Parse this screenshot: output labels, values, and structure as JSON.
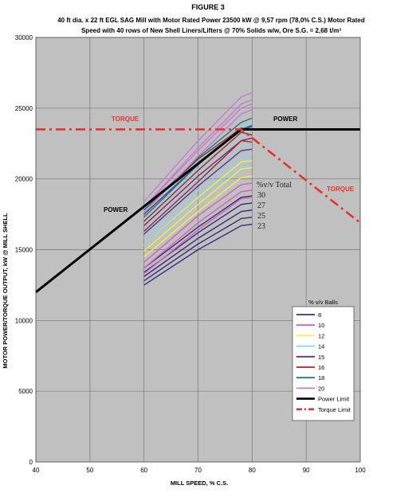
{
  "figure_label": "FIGURE 3",
  "title_line1": "40 ft dia. x 22 ft EGL SAG Mill with Motor Rated Power 23500 kW @ 9,57 rpm (78,0% C.S.) Motor Rated",
  "title_line2": "Speed with 40 rows of New Shell Liners/Lifters @ 70% Solids w/w, Ore S.G. = 2,68 t/m³",
  "colors": {
    "plot_bg": "#c0c0c0",
    "grid": "#777777",
    "power_limit": "#000000",
    "torque_limit": "#e8322c"
  },
  "chart_data": {
    "type": "line",
    "xlabel": "MILL SPEED, % C.S.",
    "ylabel": "MOTOR POWER/TORQUE OUTPUT, kW @ MILL SHELL",
    "xlim": [
      40,
      100
    ],
    "ylim": [
      0,
      30000
    ],
    "x_ticks": [
      "40",
      "50",
      "60",
      "70",
      "80",
      "90",
      "100"
    ],
    "y_ticks": [
      "0",
      "5000",
      "10000",
      "15000",
      "20000",
      "25000",
      "30000"
    ],
    "grid": true,
    "annotations": {
      "torque_left": "TORQUE",
      "torque_right": "TORQUE",
      "power_left": "POWER",
      "power_right": "POWER",
      "total_header": "%v/v Total",
      "total_30": "30",
      "total_27": "27",
      "total_25": "25",
      "total_23": "23"
    },
    "reference_lines": [
      {
        "name": "Power Limit",
        "color": "#000000",
        "style": "solid",
        "points": [
          [
            40,
            12000
          ],
          [
            78,
            23500
          ],
          [
            100,
            23500
          ]
        ]
      },
      {
        "name": "Torque Limit",
        "color": "#e8322c",
        "style": "dashdot",
        "points": [
          [
            40,
            23500
          ],
          [
            78,
            23500
          ],
          [
            100,
            16900
          ]
        ]
      }
    ],
    "legend": {
      "title": "% v/v Balls",
      "position": "bottom-right",
      "entries": [
        {
          "label": "8",
          "color": "#3b2c7a"
        },
        {
          "label": "10",
          "color": "#d060c0"
        },
        {
          "label": "12",
          "color": "#f0f048"
        },
        {
          "label": "14",
          "color": "#84d4ec"
        },
        {
          "label": "15",
          "color": "#6c2c7c"
        },
        {
          "label": "16",
          "color": "#a02828"
        },
        {
          "label": "18",
          "color": "#1c7c80"
        },
        {
          "label": "20",
          "color": "#c87ad0"
        },
        {
          "label": "Power Limit",
          "color": "#000000"
        },
        {
          "label": "Torque Limit",
          "color": "#e8322c"
        }
      ]
    },
    "series": [
      {
        "name": "8",
        "color": "#3b2c7a",
        "x": [
          60,
          70,
          78,
          80
        ],
        "y": [
          [
            12500,
            15000,
            16700,
            16800
          ],
          [
            12800,
            15400,
            17200,
            17300
          ],
          [
            13100,
            15800,
            17700,
            17800
          ],
          [
            13400,
            16200,
            18200,
            18300
          ],
          [
            13700,
            16600,
            18700,
            18800
          ]
        ]
      },
      {
        "name": "10",
        "color": "#d060c0",
        "x": [
          60,
          70,
          78,
          80
        ],
        "y": [
          [
            13300,
            16400,
            18600,
            18700
          ],
          [
            13700,
            16900,
            19100,
            19200
          ],
          [
            14100,
            17400,
            19600,
            19700
          ]
        ]
      },
      {
        "name": "12",
        "color": "#f0f048",
        "x": [
          60,
          70,
          78,
          80
        ],
        "y": [
          [
            14500,
            17700,
            20100,
            20200
          ],
          [
            14900,
            18200,
            20700,
            20800
          ],
          [
            15300,
            18700,
            21200,
            21300
          ]
        ]
      },
      {
        "name": "14",
        "color": "#84d4ec",
        "x": [
          60,
          70,
          78,
          80
        ],
        "y": [
          [
            15300,
            18600,
            20900,
            21100
          ],
          [
            15800,
            19200,
            21500,
            21700
          ],
          [
            16200,
            19700,
            22100,
            22300
          ],
          [
            16700,
            20200,
            22700,
            22900
          ],
          [
            17200,
            20700,
            23200,
            23400
          ],
          [
            17700,
            21200,
            23700,
            23900
          ]
        ]
      },
      {
        "name": "15",
        "color": "#6c2c7c",
        "x": [
          60,
          70,
          78,
          80
        ],
        "y": [
          [
            16100,
            19500,
            22000,
            22100
          ],
          [
            16700,
            20200,
            22700,
            22900
          ],
          [
            17500,
            21000,
            23500,
            23700
          ]
        ]
      },
      {
        "name": "16",
        "color": "#a02828",
        "x": [
          60,
          70,
          78,
          80
        ],
        "y": [
          [
            16300,
            19800,
            22700,
            22600
          ],
          [
            17000,
            20600,
            23300,
            23100
          ],
          [
            17800,
            21400,
            23600,
            23500
          ]
        ]
      },
      {
        "name": "18",
        "color": "#1c7c80",
        "x": [
          60,
          70,
          78,
          80
        ],
        "y": [
          [
            17300,
            21000,
            23500,
            23800
          ],
          [
            17800,
            21500,
            24000,
            24300
          ]
        ]
      },
      {
        "name": "20",
        "color": "#c87ad0",
        "x": [
          60,
          70,
          78,
          80
        ],
        "y": [
          [
            17600,
            21600,
            24600,
            24900
          ],
          [
            18000,
            22200,
            25300,
            25600
          ],
          [
            18400,
            22700,
            25800,
            26100
          ],
          [
            18000,
            22000,
            25000,
            25300
          ]
        ]
      }
    ]
  }
}
